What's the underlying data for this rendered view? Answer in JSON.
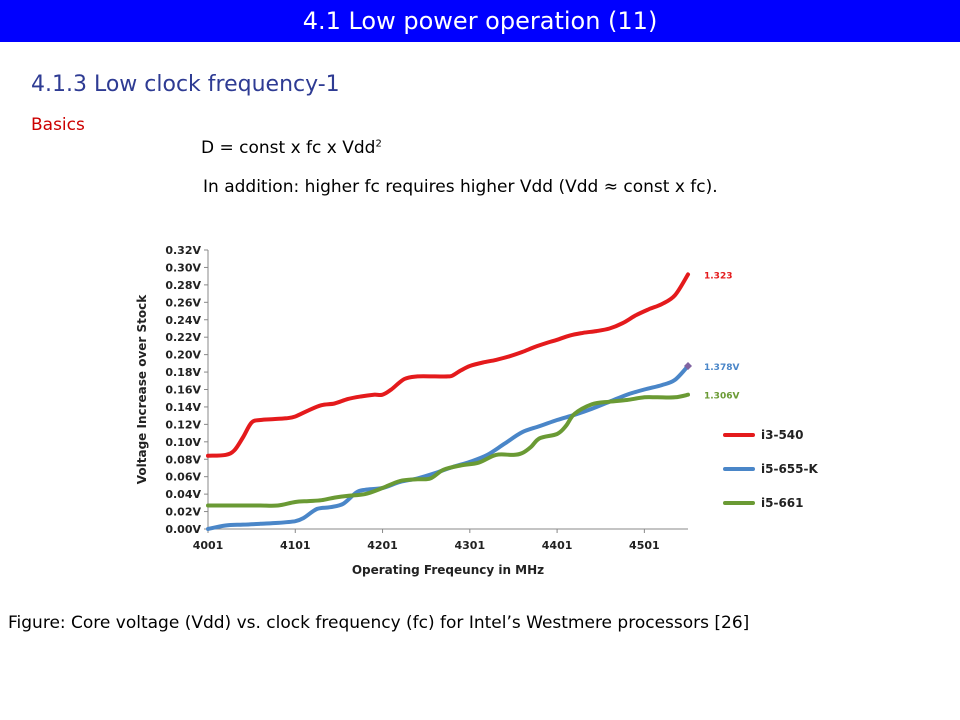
{
  "header": {
    "title": "4.1 Low power operation (11)"
  },
  "content": {
    "subtitle": "4.1.3 Low clock frequency-1",
    "section_label": "Basics",
    "formula_main": "D = const x fc x Vdd",
    "formula_exponent": "2",
    "note": "In addition: higher fc requires higher Vdd (Vdd ≈ const x fc).",
    "caption": "Figure: Core voltage (Vdd) vs. clock frequency (fc) for Intel’s Westmere processors [26]"
  },
  "chart_data": {
    "type": "line",
    "title": "",
    "xlabel": "Operating Freqeuncy in MHz",
    "ylabel": "Voltage Increase over Stock",
    "xlim": [
      4001,
      4551
    ],
    "ylim": [
      0,
      0.32
    ],
    "x_ticks": [
      4001,
      4101,
      4201,
      4301,
      4401,
      4501
    ],
    "y_ticks": [
      0,
      0.02,
      0.04,
      0.06,
      0.08,
      0.1,
      0.12,
      0.14,
      0.16,
      0.18,
      0.2,
      0.22,
      0.24,
      0.26,
      0.28,
      0.3,
      0.32
    ],
    "y_tick_labels": [
      "0.00V",
      "0.02V",
      "0.04V",
      "0.06V",
      "0.08V",
      "0.10V",
      "0.12V",
      "0.14V",
      "0.16V",
      "0.18V",
      "0.20V",
      "0.22V",
      "0.24V",
      "0.26V",
      "0.28V",
      "0.30V",
      "0.32V"
    ],
    "grid": false,
    "legend_position": "right",
    "series": [
      {
        "name": "i3-540",
        "color": "#e41a1c",
        "end_label": "1.323",
        "x": [
          4001,
          4021,
          4031,
          4041,
          4051,
          4061,
          4076,
          4091,
          4101,
          4116,
          4131,
          4146,
          4161,
          4176,
          4191,
          4201,
          4211,
          4226,
          4241,
          4261,
          4276,
          4281,
          4291,
          4301,
          4316,
          4331,
          4346,
          4361,
          4376,
          4391,
          4401,
          4416,
          4431,
          4446,
          4461,
          4476,
          4491,
          4506,
          4521,
          4536,
          4551
        ],
        "y": [
          0.084,
          0.085,
          0.09,
          0.105,
          0.122,
          0.125,
          0.126,
          0.127,
          0.129,
          0.136,
          0.142,
          0.144,
          0.149,
          0.152,
          0.154,
          0.154,
          0.16,
          0.172,
          0.175,
          0.175,
          0.175,
          0.176,
          0.182,
          0.187,
          0.191,
          0.194,
          0.198,
          0.203,
          0.209,
          0.214,
          0.217,
          0.222,
          0.225,
          0.227,
          0.23,
          0.236,
          0.245,
          0.252,
          0.258,
          0.268,
          0.292
        ]
      },
      {
        "name": "i5-655-K",
        "color": "#4a86c8",
        "end_label": "1.378V",
        "x": [
          4001,
          4021,
          4041,
          4061,
          4081,
          4101,
          4111,
          4126,
          4141,
          4156,
          4171,
          4181,
          4201,
          4221,
          4241,
          4261,
          4281,
          4301,
          4321,
          4341,
          4361,
          4381,
          4401,
          4421,
          4441,
          4461,
          4481,
          4501,
          4521,
          4536,
          4551
        ],
        "y": [
          0.0,
          0.004,
          0.005,
          0.006,
          0.007,
          0.009,
          0.013,
          0.023,
          0.025,
          0.029,
          0.042,
          0.045,
          0.047,
          0.054,
          0.058,
          0.064,
          0.071,
          0.077,
          0.085,
          0.098,
          0.111,
          0.118,
          0.125,
          0.131,
          0.138,
          0.146,
          0.154,
          0.16,
          0.165,
          0.171,
          0.187
        ]
      },
      {
        "name": "i5-661",
        "color": "#6a9a34",
        "end_label": "1.306V",
        "x": [
          4001,
          4021,
          4041,
          4061,
          4081,
          4101,
          4116,
          4131,
          4146,
          4161,
          4181,
          4201,
          4221,
          4241,
          4256,
          4271,
          4291,
          4311,
          4331,
          4351,
          4361,
          4371,
          4381,
          4401,
          4411,
          4421,
          4441,
          4461,
          4481,
          4501,
          4516,
          4536,
          4551
        ],
        "y": [
          0.027,
          0.027,
          0.027,
          0.027,
          0.027,
          0.031,
          0.032,
          0.033,
          0.036,
          0.038,
          0.04,
          0.047,
          0.055,
          0.057,
          0.058,
          0.068,
          0.073,
          0.076,
          0.085,
          0.085,
          0.087,
          0.094,
          0.104,
          0.109,
          0.118,
          0.132,
          0.143,
          0.146,
          0.148,
          0.151,
          0.151,
          0.151,
          0.154
        ]
      }
    ]
  }
}
